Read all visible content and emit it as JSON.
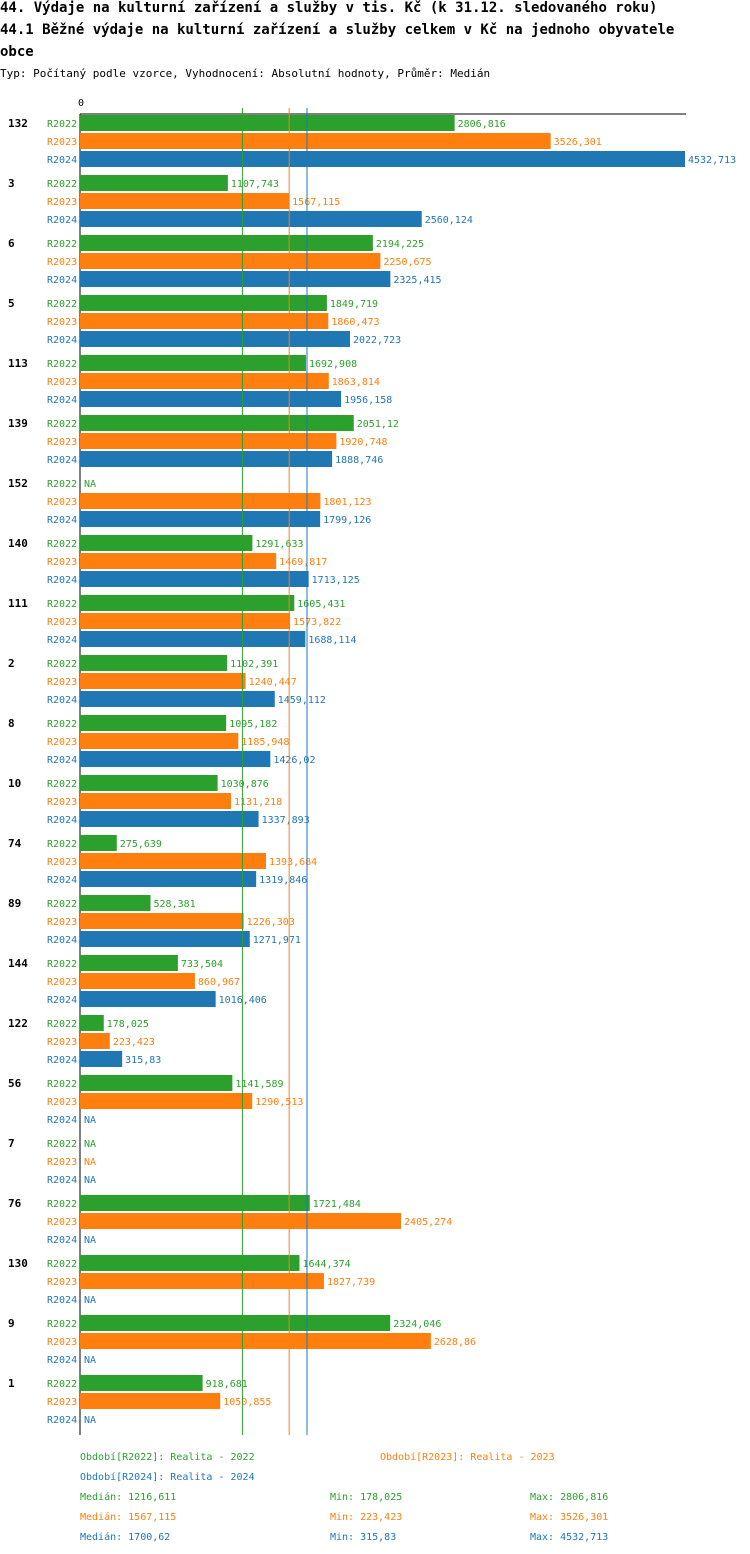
{
  "header": {
    "title_line1": "44. Výdaje na kulturní zařízení a služby v tis. Kč (k 31.12. sledovaného roku)",
    "title_line2": "44.1 Běžné výdaje na kulturní zařízení a služby celkem v Kč na jednoho obyvatele",
    "title_line3": "obce",
    "subtitle": "Typ: Počítaný podle vzorce, Vyhodnocení: Absolutní hodnoty, Průměr: Medián"
  },
  "colors": {
    "R2022": "#2ca02c",
    "R2023": "#ff7f0e",
    "R2024": "#1f77b4"
  },
  "chart_data": {
    "type": "bar",
    "orientation": "horizontal",
    "axis_zero_label": "0",
    "xlim": [
      0,
      4532.713
    ],
    "na_label": "NA",
    "series_names": [
      "R2022",
      "R2023",
      "R2024"
    ],
    "groups": [
      {
        "label": "132",
        "values": [
          2806.816,
          3526.301,
          4532.713
        ],
        "labels": [
          "2806,816",
          "3526,301",
          "4532,713"
        ]
      },
      {
        "label": "3",
        "values": [
          1107.743,
          1567.115,
          2560.124
        ],
        "labels": [
          "1107,743",
          "1567,115",
          "2560,124"
        ]
      },
      {
        "label": "6",
        "values": [
          2194.225,
          2250.675,
          2325.415
        ],
        "labels": [
          "2194,225",
          "2250,675",
          "2325,415"
        ]
      },
      {
        "label": "5",
        "values": [
          1849.719,
          1860.473,
          2022.723
        ],
        "labels": [
          "1849,719",
          "1860,473",
          "2022,723"
        ]
      },
      {
        "label": "113",
        "values": [
          1692.908,
          1863.814,
          1956.158
        ],
        "labels": [
          "1692,908",
          "1863,814",
          "1956,158"
        ]
      },
      {
        "label": "139",
        "values": [
          2051.12,
          1920.748,
          1888.746
        ],
        "labels": [
          "2051,12",
          "1920,748",
          "1888,746"
        ]
      },
      {
        "label": "152",
        "values": [
          null,
          1801.123,
          1799.126
        ],
        "labels": [
          "NA",
          "1801,123",
          "1799,126"
        ]
      },
      {
        "label": "140",
        "values": [
          1291.633,
          1469.817,
          1713.125
        ],
        "labels": [
          "1291,633",
          "1469,817",
          "1713,125"
        ]
      },
      {
        "label": "111",
        "values": [
          1605.431,
          1573.822,
          1688.114
        ],
        "labels": [
          "1605,431",
          "1573,822",
          "1688,114"
        ]
      },
      {
        "label": "2",
        "values": [
          1102.391,
          1240.447,
          1459.112
        ],
        "labels": [
          "1102,391",
          "1240,447",
          "1459,112"
        ]
      },
      {
        "label": "8",
        "values": [
          1095.182,
          1185.948,
          1426.02
        ],
        "labels": [
          "1095,182",
          "1185,948",
          "1426,02"
        ]
      },
      {
        "label": "10",
        "values": [
          1030.876,
          1131.218,
          1337.893
        ],
        "labels": [
          "1030,876",
          "1131,218",
          "1337,893"
        ]
      },
      {
        "label": "74",
        "values": [
          275.639,
          1393.684,
          1319.846
        ],
        "labels": [
          "275,639",
          "1393,684",
          "1319,846"
        ]
      },
      {
        "label": "89",
        "values": [
          528.381,
          1226.303,
          1271.971
        ],
        "labels": [
          "528,381",
          "1226,303",
          "1271,971"
        ]
      },
      {
        "label": "144",
        "values": [
          733.504,
          860.967,
          1016.406
        ],
        "labels": [
          "733,504",
          "860,967",
          "1016,406"
        ]
      },
      {
        "label": "122",
        "values": [
          178.025,
          223.423,
          315.83
        ],
        "labels": [
          "178,025",
          "223,423",
          "315,83"
        ]
      },
      {
        "label": "56",
        "values": [
          1141.589,
          1290.513,
          null
        ],
        "labels": [
          "1141,589",
          "1290,513",
          "NA"
        ]
      },
      {
        "label": "7",
        "values": [
          null,
          null,
          null
        ],
        "labels": [
          "NA",
          "NA",
          "NA"
        ]
      },
      {
        "label": "76",
        "values": [
          1721.484,
          2405.274,
          null
        ],
        "labels": [
          "1721,484",
          "2405,274",
          "NA"
        ]
      },
      {
        "label": "130",
        "values": [
          1644.374,
          1827.739,
          null
        ],
        "labels": [
          "1644,374",
          "1827,739",
          "NA"
        ]
      },
      {
        "label": "9",
        "values": [
          2324.046,
          2628.86,
          null
        ],
        "labels": [
          "2324,046",
          "2628,86",
          "NA"
        ]
      },
      {
        "label": "1",
        "values": [
          918.681,
          1050.855,
          null
        ],
        "labels": [
          "918,681",
          "1050,855",
          "NA"
        ]
      }
    ],
    "median_lines": [
      1216.611,
      1567.115,
      1700.62
    ]
  },
  "legend": {
    "period_r2022": "Období[R2022]: Realita - 2022",
    "period_r2023": "Období[R2023]: Realita - 2023",
    "period_r2024": "Období[R2024]: Realita - 2024",
    "stats": [
      {
        "median": "Medián: 1216,611",
        "min": "Min: 178,025",
        "max": "Max: 2806,816"
      },
      {
        "median": "Medián: 1567,115",
        "min": "Min: 223,423",
        "max": "Max: 3526,301"
      },
      {
        "median": "Medián: 1700,62",
        "min": "Min: 315,83",
        "max": "Max: 4532,713"
      }
    ]
  }
}
